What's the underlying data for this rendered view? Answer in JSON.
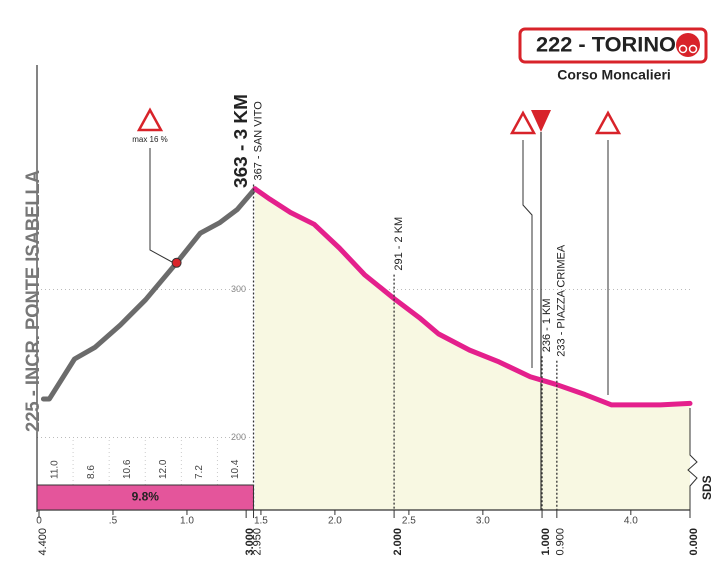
{
  "chart_data": {
    "type": "line",
    "title": "363 - 3 KM",
    "start_label": "225 - INCR. PONTE ISABELLA",
    "finish": {
      "title": "222 - TORINO",
      "subtitle": "Corso Moncalieri"
    },
    "watermark": "SDS",
    "x": [
      0.03,
      0.07,
      0.24,
      0.38,
      0.55,
      0.72,
      0.93,
      1.09,
      1.22,
      1.34,
      1.46,
      1.56,
      1.7,
      1.86,
      2.03,
      2.2,
      2.41,
      2.57,
      2.7,
      2.91,
      3.11,
      3.32,
      3.49,
      3.69,
      3.87,
      4.2,
      4.4
    ],
    "series": [
      {
        "color": "#6b6b6b",
        "values": [
          226,
          226,
          253,
          261,
          276,
          293,
          318,
          338,
          345,
          354,
          368,
          null,
          null,
          null,
          null,
          null,
          null,
          null,
          null,
          null,
          null,
          null,
          null,
          null,
          null,
          null,
          null
        ]
      },
      {
        "color": "#e4208c",
        "fill": "#f8f8e2",
        "values": [
          null,
          null,
          null,
          null,
          null,
          null,
          null,
          null,
          null,
          null,
          368,
          361,
          352,
          344,
          328,
          310,
          293,
          281,
          270,
          259,
          251,
          241,
          236,
          229,
          222,
          222,
          223
        ]
      }
    ],
    "xlim": [
      0,
      4.4
    ],
    "xticks": [
      0,
      {
        "value": 0.5,
        "label": ".5"
      },
      {
        "value": 1,
        "label": "1.0"
      },
      1.5,
      {
        "value": 2,
        "label": "2.0"
      },
      2.5,
      {
        "value": 3,
        "label": "3.0"
      },
      {
        "value": 4,
        "label": "4.0"
      }
    ],
    "x2lim": [
      4.4,
      0
    ],
    "x2ticks": [
      {
        "value": 4.4,
        "label": "4.400"
      },
      {
        "value": 3,
        "label": "3.000"
      },
      {
        "value": 2.95,
        "label": "2.950"
      },
      {
        "value": 2,
        "label": "2.000"
      },
      {
        "value": 1,
        "label": "1.000"
      },
      {
        "value": 0.9,
        "label": "0.900"
      },
      {
        "value": 0,
        "label": "0.000"
      }
    ],
    "ylim": [
      151,
      455
    ],
    "yticks": [
      200,
      300
    ],
    "grid": true,
    "annotations": [
      {
        "x": 1.45,
        "text": "367 - SAN VITO"
      },
      {
        "x": 2.4,
        "text": "291 - 2 KM"
      },
      {
        "x": 3.4,
        "text": "236 - 1 KM"
      },
      {
        "x": 3.5,
        "text": "233 - PIAZZA CRIMEA"
      }
    ],
    "max_gradient": {
      "text": "max 16 %",
      "x": 0.93,
      "y": 318
    },
    "gradients": {
      "values": [
        11.0,
        8.6,
        10.6,
        12.0,
        7.2,
        10.4
      ],
      "value_labels": [
        "11.0",
        "8.6",
        "10.6",
        "12.0",
        "7.2",
        "10.4"
      ]
    },
    "average_gradient": {
      "value": 9.8,
      "label": "9.8%"
    }
  }
}
